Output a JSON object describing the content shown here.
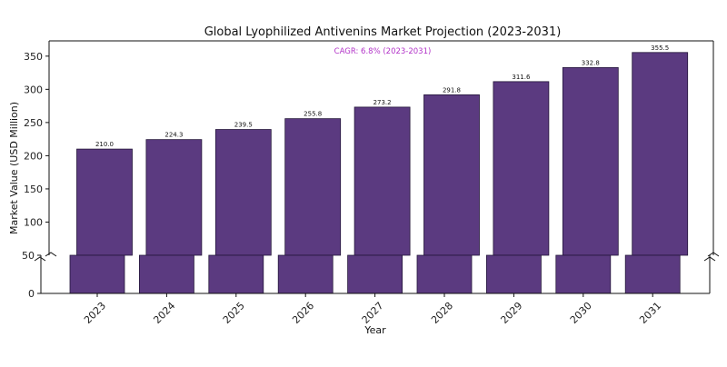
{
  "chart_data": {
    "type": "bar",
    "title": "Global Lyophilized Antivenins Market Projection (2023-2031)",
    "xlabel": "Year",
    "ylabel": "Market Value (USD Million)",
    "categories": [
      "2023",
      "2024",
      "2025",
      "2026",
      "2027",
      "2028",
      "2029",
      "2030",
      "2031"
    ],
    "values": [
      210.0,
      224.3,
      239.5,
      255.8,
      273.2,
      291.8,
      311.6,
      332.8,
      355.5
    ],
    "data_labels": [
      "210.0",
      "224.3",
      "239.5",
      "255.8",
      "273.2",
      "291.8",
      "311.6",
      "332.8",
      "355.5"
    ],
    "ylim": [
      0,
      373
    ],
    "yticks": [
      0,
      50,
      100,
      150,
      200,
      250,
      300,
      350
    ],
    "ytick_labels": [
      "0",
      "50",
      "100",
      "150",
      "200",
      "250",
      "300",
      "350"
    ],
    "annotation": "CAGR: 6.8% (2023-2031)",
    "bar_color": "#5b3a80",
    "annotation_color": "#b233c8",
    "grid": false,
    "broken_axis": {
      "lower_range": [
        0,
        50
      ],
      "upper_range": [
        50,
        373
      ]
    }
  }
}
